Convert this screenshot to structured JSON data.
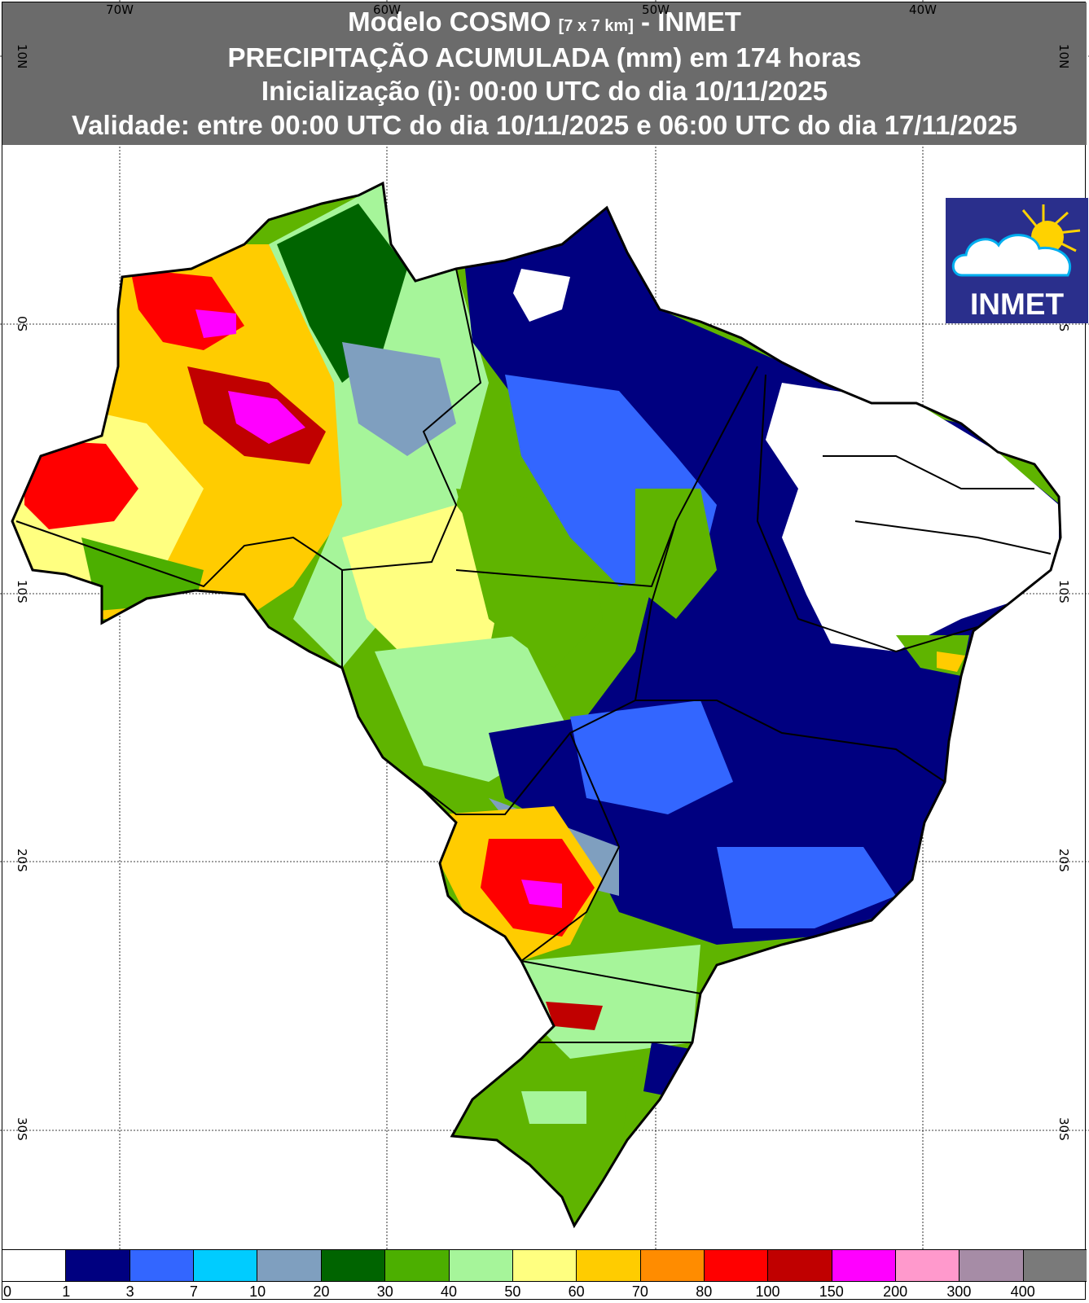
{
  "header": {
    "line1_prefix": "Modelo COSMO",
    "line1_small": "[7 x 7 km]",
    "line1_suffix": "- INMET",
    "line2": "PRECIPITAÇÃO ACUMULADA (mm) em 174 horas",
    "line3": "Inicialização (i): 00:00 UTC do dia 10/11/2025",
    "line4": "Validade: entre 00:00 UTC do dia 10/11/2025 e 06:00 UTC do dia 17/11/2025"
  },
  "axes": {
    "longitude_labels": [
      "70W",
      "60W",
      "50W",
      "40W"
    ],
    "latitude_labels": [
      "10N",
      "0S",
      "10S",
      "20S",
      "30S"
    ]
  },
  "logo": {
    "text": "INMET"
  },
  "legend": {
    "colors": [
      "#ffffff",
      "#000080",
      "#3366ff",
      "#00ccff",
      "#7f9fbf",
      "#006400",
      "#4caf00",
      "#a6f59a",
      "#ffff80",
      "#ffcc00",
      "#ff8c00",
      "#ff0000",
      "#c00000",
      "#ff00ff",
      "#ff99cc",
      "#a68ca6",
      "#7a7a7a"
    ],
    "labels": [
      "0",
      "1",
      "3",
      "7",
      "10",
      "20",
      "30",
      "40",
      "50",
      "60",
      "70",
      "80",
      "100",
      "150",
      "200",
      "300",
      "400"
    ]
  }
}
